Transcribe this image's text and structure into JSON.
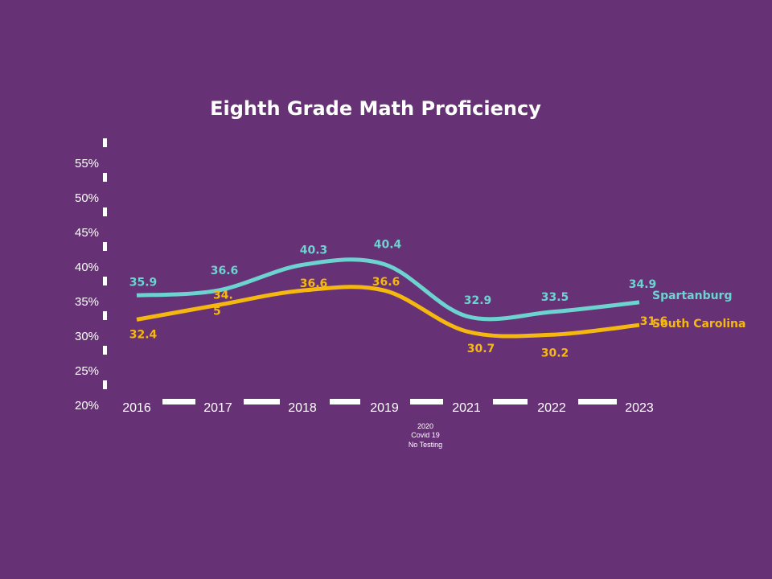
{
  "colors": {
    "background": "#673175",
    "spartanburg": "#6dd3d0",
    "south_carolina": "#f5b810",
    "axis": "#ffffff"
  },
  "chart_data": {
    "type": "line",
    "title": "Eighth Grade Math Proficiency",
    "categories": [
      "2016",
      "2017",
      "2018",
      "2019",
      "2021",
      "2022",
      "2023"
    ],
    "y_tick_labels": [
      "20%",
      "25%",
      "30%",
      "35%",
      "40%",
      "45%",
      "50%",
      "55%"
    ],
    "ylim": [
      20,
      55
    ],
    "grid": false,
    "line_style": "smooth",
    "legend": "series labels at right end of lines",
    "annotation": [
      "2020",
      "Covid 19",
      "No Testing"
    ],
    "series": [
      {
        "name": "Spartanburg",
        "values": [
          35.9,
          36.6,
          40.3,
          40.4,
          32.9,
          33.5,
          34.9
        ],
        "labels": [
          "35.9",
          "36.6",
          "40.3",
          "40.4",
          "32.9",
          "33.5",
          "34.9"
        ]
      },
      {
        "name": "South Carolina",
        "values": [
          32.4,
          34.5,
          36.6,
          36.6,
          30.7,
          30.2,
          31.6
        ],
        "labels": [
          "32.4",
          "34.\n5",
          "36.6",
          "36.6",
          "30.7",
          "30.2",
          "31.6"
        ]
      }
    ]
  }
}
